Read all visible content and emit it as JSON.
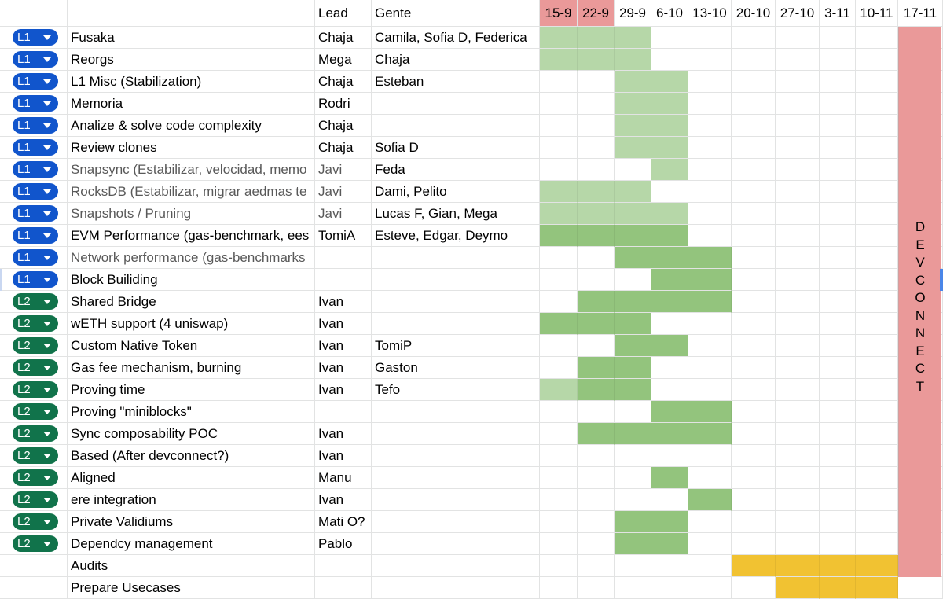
{
  "colors": {
    "l1_chip": "#1155cc",
    "l2_chip": "#11734b",
    "light_green": "#b6d7a8",
    "medium_green": "#93c47d",
    "header_pink": "#ea9999",
    "devconnect_pink": "#ea9999",
    "gold": "#f1c232",
    "grid": "#e2e3e3"
  },
  "header": {
    "lead": "Lead",
    "gente": "Gente",
    "weeks": [
      "15-9",
      "22-9",
      "29-9",
      "6-10",
      "13-10",
      "20-10",
      "27-10",
      "3-11",
      "10-11",
      "17-11"
    ]
  },
  "devconnect_letters": [
    "D",
    "E",
    "V",
    "C",
    "O",
    "N",
    "N",
    "E",
    "C",
    "T"
  ],
  "rows": [
    {
      "tag": "L1",
      "task": "Fusaka",
      "lead": "Chaja",
      "gente": "Camila, Sofia D, Federica",
      "gray": false,
      "cells": [
        1,
        1,
        1,
        0,
        0,
        0,
        0,
        0,
        0
      ]
    },
    {
      "tag": "L1",
      "task": "Reorgs",
      "lead": "Mega",
      "gente": "Chaja",
      "gray": false,
      "cells": [
        1,
        1,
        1,
        0,
        0,
        0,
        0,
        0,
        0
      ]
    },
    {
      "tag": "L1",
      "task": "L1 Misc (Stabilization)",
      "lead": "Chaja",
      "gente": "Esteban",
      "gray": false,
      "cells": [
        0,
        0,
        1,
        1,
        0,
        0,
        0,
        0,
        0
      ]
    },
    {
      "tag": "L1",
      "task": "Memoria",
      "lead": "Rodri",
      "gente": "",
      "gray": false,
      "cells": [
        0,
        0,
        1,
        1,
        0,
        0,
        0,
        0,
        0
      ]
    },
    {
      "tag": "L1",
      "task": "Analize & solve code complexity",
      "lead": "Chaja",
      "gente": "",
      "gray": false,
      "cells": [
        0,
        0,
        1,
        1,
        0,
        0,
        0,
        0,
        0
      ]
    },
    {
      "tag": "L1",
      "task": "Review clones",
      "lead": "Chaja",
      "gente": "Sofia D",
      "gray": false,
      "cells": [
        0,
        0,
        1,
        1,
        0,
        0,
        0,
        0,
        0
      ]
    },
    {
      "tag": "L1",
      "task": "Snapsync (Estabilizar, velocidad, memo",
      "lead": "Javi",
      "gente": " Feda",
      "gray": true,
      "cells": [
        0,
        0,
        0,
        1,
        0,
        0,
        0,
        0,
        0
      ]
    },
    {
      "tag": "L1",
      "task": "RocksDB (Estabilizar, migrar aedmas te",
      "lead": "Javi",
      "gente": "Dami, Pelito",
      "gray": true,
      "cells": [
        1,
        1,
        1,
        0,
        0,
        0,
        0,
        0,
        0
      ]
    },
    {
      "tag": "L1",
      "task": "Snapshots / Pruning",
      "lead": "Javi",
      "gente": "Lucas F, Gian, Mega",
      "gray": true,
      "cells": [
        1,
        1,
        1,
        1,
        0,
        0,
        0,
        0,
        0
      ]
    },
    {
      "tag": "L1",
      "task": "EVM Performance (gas-benchmark, ees",
      "lead": "TomiA",
      "gente": "Esteve, Edgar, Deymo",
      "gray": false,
      "cells": [
        2,
        2,
        2,
        2,
        0,
        0,
        0,
        0,
        0
      ]
    },
    {
      "tag": "L1",
      "task": "Network performance (gas-benchmarks",
      "lead": "",
      "gente": "",
      "gray": true,
      "cells": [
        0,
        0,
        2,
        2,
        2,
        0,
        0,
        0,
        0
      ]
    },
    {
      "tag": "L1",
      "task": "Block Builiding",
      "lead": "",
      "gente": "",
      "gray": false,
      "cells": [
        0,
        0,
        0,
        2,
        2,
        0,
        0,
        0,
        0
      ]
    },
    {
      "tag": "L2",
      "task": "Shared Bridge",
      "lead": "Ivan",
      "gente": "",
      "gray": false,
      "cells": [
        0,
        2,
        2,
        2,
        2,
        0,
        0,
        0,
        0
      ]
    },
    {
      "tag": "L2",
      "task": "wETH support (4 uniswap)",
      "lead": "Ivan",
      "gente": "",
      "gray": false,
      "cells": [
        2,
        2,
        2,
        0,
        0,
        0,
        0,
        0,
        0
      ]
    },
    {
      "tag": "L2",
      "task": "Custom Native Token",
      "lead": "Ivan",
      "gente": "TomiP",
      "gray": false,
      "cells": [
        0,
        0,
        2,
        2,
        0,
        0,
        0,
        0,
        0
      ]
    },
    {
      "tag": "L2",
      "task": "Gas fee mechanism, burning",
      "lead": "Ivan",
      "gente": "Gaston",
      "gray": false,
      "cells": [
        0,
        2,
        2,
        0,
        0,
        0,
        0,
        0,
        0
      ]
    },
    {
      "tag": "L2",
      "task": "Proving time",
      "lead": "Ivan",
      "gente": "Tefo",
      "gray": false,
      "cells": [
        1,
        2,
        2,
        0,
        0,
        0,
        0,
        0,
        0
      ]
    },
    {
      "tag": "L2",
      "task": "Proving \"miniblocks\"",
      "lead": "",
      "gente": "",
      "gray": false,
      "cells": [
        0,
        0,
        0,
        2,
        2,
        0,
        0,
        0,
        0
      ]
    },
    {
      "tag": "L2",
      "task": "Sync composability POC",
      "lead": "Ivan",
      "gente": "",
      "gray": false,
      "cells": [
        0,
        2,
        2,
        2,
        2,
        0,
        0,
        0,
        0
      ]
    },
    {
      "tag": "L2",
      "task": "Based (After devconnect?)",
      "lead": "Ivan",
      "gente": "",
      "gray": false,
      "cells": [
        0,
        0,
        0,
        0,
        0,
        0,
        0,
        0,
        0
      ]
    },
    {
      "tag": "L2",
      "task": "Aligned",
      "lead": "Manu",
      "gente": "",
      "gray": false,
      "cells": [
        0,
        0,
        0,
        2,
        0,
        0,
        0,
        0,
        0
      ]
    },
    {
      "tag": "L2",
      "task": "ere integration",
      "lead": "Ivan",
      "gente": "",
      "gray": false,
      "cells": [
        0,
        0,
        0,
        0,
        2,
        0,
        0,
        0,
        0
      ]
    },
    {
      "tag": "L2",
      "task": "Private Validiums",
      "lead": "Mati O?",
      "gente": "",
      "gray": false,
      "cells": [
        0,
        0,
        2,
        2,
        0,
        0,
        0,
        0,
        0
      ]
    },
    {
      "tag": "L2",
      "task": "Dependcy management",
      "lead": "Pablo",
      "gente": "",
      "gray": false,
      "cells": [
        0,
        0,
        2,
        2,
        0,
        0,
        0,
        0,
        0
      ]
    },
    {
      "tag": "",
      "task": "Audits",
      "lead": "",
      "gente": "",
      "gray": false,
      "cells": [
        0,
        0,
        0,
        0,
        0,
        3,
        3,
        3,
        3
      ]
    },
    {
      "tag": "",
      "task": "Prepare Usecases",
      "lead": "",
      "gente": "",
      "gray": false,
      "cells": [
        0,
        0,
        0,
        0,
        0,
        0,
        3,
        3,
        3
      ]
    }
  ]
}
